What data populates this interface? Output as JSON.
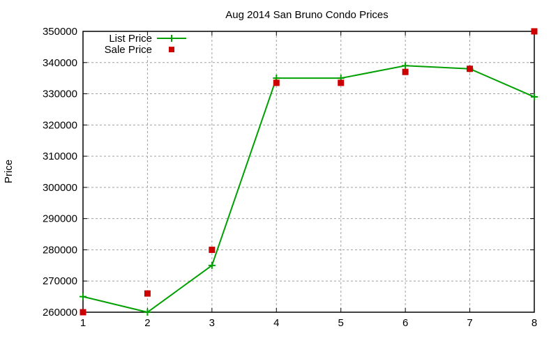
{
  "chart_data": {
    "type": "line",
    "title": "Aug 2014 San Bruno Condo Prices",
    "xlabel": "",
    "ylabel": "Price",
    "x": [
      1,
      2,
      3,
      4,
      5,
      6,
      7,
      8
    ],
    "xlim": [
      1,
      8
    ],
    "ylim": [
      260000,
      350000
    ],
    "yticks": [
      260000,
      270000,
      280000,
      290000,
      300000,
      310000,
      320000,
      330000,
      340000,
      350000
    ],
    "xticks": [
      1,
      2,
      3,
      4,
      5,
      6,
      7,
      8
    ],
    "grid": true,
    "legend_position": "top-left",
    "series": [
      {
        "name": "List Price",
        "style": "linespoints",
        "marker": "plus",
        "color": "#00a000",
        "values": [
          265000,
          260000,
          275000,
          335000,
          335000,
          339000,
          338000,
          329000
        ]
      },
      {
        "name": "Sale Price",
        "style": "points",
        "marker": "square",
        "color": "#cc0000",
        "values": [
          260000,
          266000,
          280000,
          333500,
          333500,
          337000,
          338000,
          350000
        ]
      }
    ]
  }
}
